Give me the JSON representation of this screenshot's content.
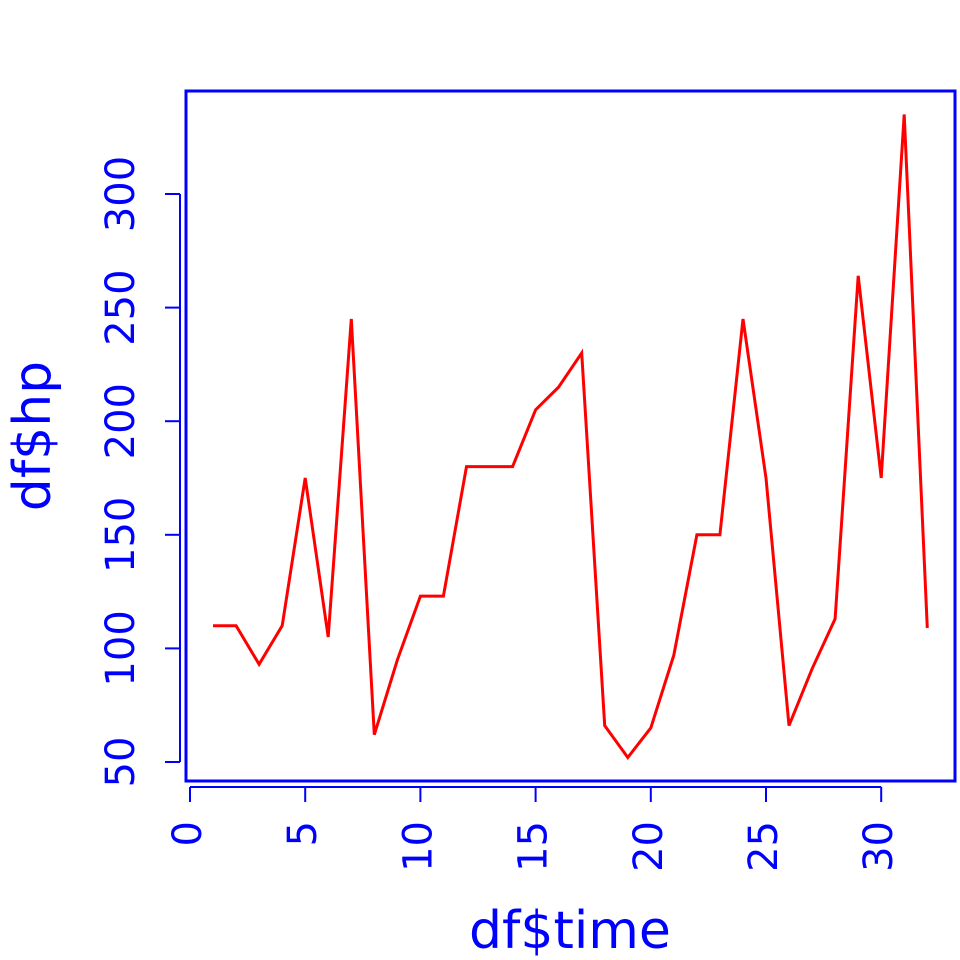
{
  "chart_data": {
    "type": "line",
    "title": "",
    "xlabel": "df$time",
    "ylabel": "df$hp",
    "xlim": [
      0,
      33
    ],
    "ylim": [
      45,
      350
    ],
    "xticks": [
      0,
      5,
      10,
      15,
      20,
      25,
      30
    ],
    "yticks": [
      50,
      100,
      150,
      200,
      250,
      300
    ],
    "grid": false,
    "legend": "none",
    "colors": {
      "line": "#ff0000",
      "axis": "#0000ff",
      "background": "#ffffff"
    },
    "x": [
      1,
      2,
      3,
      4,
      5,
      6,
      7,
      8,
      9,
      10,
      11,
      12,
      13,
      14,
      15,
      16,
      17,
      18,
      19,
      20,
      21,
      22,
      23,
      24,
      25,
      26,
      27,
      28,
      29,
      30,
      31,
      32
    ],
    "y": [
      110,
      110,
      93,
      110,
      175,
      105,
      245,
      62,
      95,
      123,
      123,
      180,
      180,
      180,
      205,
      215,
      230,
      66,
      52,
      65,
      97,
      150,
      150,
      245,
      175,
      66,
      91,
      113,
      264,
      175,
      335,
      109
    ]
  }
}
